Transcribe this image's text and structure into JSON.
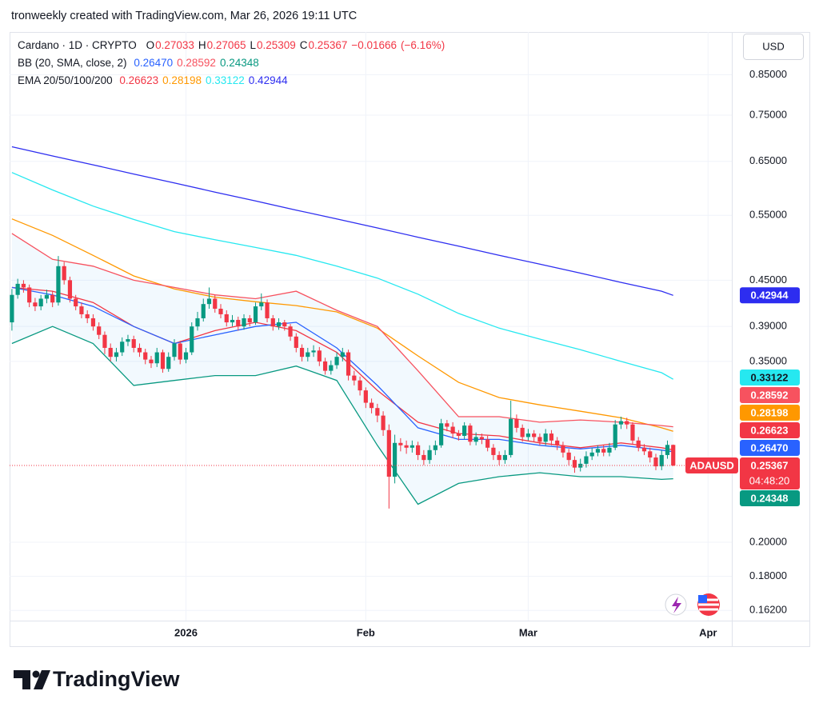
{
  "chart_data": {
    "type": "candlestick",
    "attribution": "tronweekly created with TradingView.com, Mar 26, 2026 19:11 UTC",
    "symbol": "Cardano · 1D · CRYPTO",
    "symbol_tag": "ADAUSD",
    "currency": "USD",
    "countdown": "04:48:20",
    "logo_text": "TradingView",
    "ohlc_labels": [
      "O",
      "H",
      "L",
      "C"
    ],
    "change": {
      "value": -0.01666,
      "label": "−0.01666"
    },
    "change_pct": {
      "value": -6.16,
      "label": "(−6.16%)"
    },
    "log_scale": true,
    "grid": true,
    "ylim": [
      0.145,
      0.97
    ],
    "yticks": [
      {
        "value": 0.85,
        "label": "0.85000"
      },
      {
        "value": 0.75,
        "label": "0.75000"
      },
      {
        "value": 0.65,
        "label": "0.65000"
      },
      {
        "value": 0.55,
        "label": "0.55000"
      },
      {
        "value": 0.45,
        "label": "0.45000"
      },
      {
        "value": 0.39,
        "label": "0.39000"
      },
      {
        "value": 0.35,
        "label": "0.35000"
      },
      {
        "value": 0.2,
        "label": "0.20000"
      },
      {
        "value": 0.18,
        "label": "0.18000"
      },
      {
        "value": 0.162,
        "label": "0.16200"
      }
    ],
    "xlim": [
      -0.4,
      124.1
    ],
    "xticks": [
      {
        "value": 30,
        "label": "2026"
      },
      {
        "value": 61,
        "label": "Feb"
      },
      {
        "value": 89,
        "label": "Mar"
      },
      {
        "value": 120,
        "label": "Apr"
      }
    ],
    "candles": {
      "up_color": "#089981",
      "down_color": "#f23645",
      "open": [
        0.395,
        0.43,
        0.445,
        0.44,
        0.42,
        0.415,
        0.425,
        0.43,
        0.42,
        0.47,
        0.45,
        0.425,
        0.415,
        0.405,
        0.4,
        0.39,
        0.38,
        0.365,
        0.355,
        0.36,
        0.372,
        0.375,
        0.365,
        0.36,
        0.352,
        0.348,
        0.36,
        0.342,
        0.355,
        0.37,
        0.352,
        0.36,
        0.39,
        0.4,
        0.418,
        0.425,
        0.412,
        0.405,
        0.395,
        0.398,
        0.39,
        0.4,
        0.395,
        0.415,
        0.42,
        0.4,
        0.39,
        0.395,
        0.39,
        0.378,
        0.365,
        0.355,
        0.36,
        0.362,
        0.35,
        0.34,
        0.346,
        0.355,
        0.36,
        0.335,
        0.33,
        0.32,
        0.308,
        0.303,
        0.296,
        0.283,
        0.245,
        0.272,
        0.27,
        0.268,
        0.27,
        0.262,
        0.258,
        0.266,
        0.27,
        0.289,
        0.286,
        0.28,
        0.278,
        0.287,
        0.273,
        0.277,
        0.275,
        0.268,
        0.262,
        0.258,
        0.262,
        0.293,
        0.285,
        0.277,
        0.28,
        0.277,
        0.273,
        0.28,
        0.274,
        0.27,
        0.264,
        0.258,
        0.252,
        0.255,
        0.261,
        0.264,
        0.267,
        0.264,
        0.268,
        0.288,
        0.291,
        0.288,
        0.274,
        0.268,
        0.265,
        0.26,
        0.253,
        0.262,
        0.27033
      ],
      "high": [
        0.438,
        0.452,
        0.45,
        0.444,
        0.426,
        0.43,
        0.437,
        0.435,
        0.485,
        0.476,
        0.455,
        0.43,
        0.42,
        0.41,
        0.405,
        0.395,
        0.384,
        0.37,
        0.365,
        0.377,
        0.38,
        0.379,
        0.37,
        0.364,
        0.356,
        0.365,
        0.363,
        0.36,
        0.375,
        0.373,
        0.365,
        0.395,
        0.408,
        0.425,
        0.44,
        0.43,
        0.418,
        0.41,
        0.404,
        0.402,
        0.405,
        0.404,
        0.42,
        0.432,
        0.424,
        0.404,
        0.4,
        0.398,
        0.393,
        0.382,
        0.369,
        0.365,
        0.368,
        0.366,
        0.354,
        0.351,
        0.36,
        0.365,
        0.363,
        0.34,
        0.334,
        0.323,
        0.312,
        0.307,
        0.3,
        0.288,
        0.279,
        0.276,
        0.274,
        0.274,
        0.273,
        0.266,
        0.27,
        0.274,
        0.293,
        0.292,
        0.29,
        0.283,
        0.29,
        0.289,
        0.281,
        0.28,
        0.278,
        0.271,
        0.265,
        0.266,
        0.31,
        0.297,
        0.288,
        0.284,
        0.283,
        0.28,
        0.284,
        0.283,
        0.277,
        0.273,
        0.267,
        0.261,
        0.259,
        0.265,
        0.268,
        0.27,
        0.27,
        0.272,
        0.292,
        0.295,
        0.294,
        0.29,
        0.277,
        0.271,
        0.268,
        0.263,
        0.266,
        0.274,
        0.27065
      ],
      "low": [
        0.385,
        0.425,
        0.433,
        0.414,
        0.409,
        0.41,
        0.419,
        0.414,
        0.416,
        0.444,
        0.42,
        0.41,
        0.4,
        0.394,
        0.385,
        0.375,
        0.358,
        0.35,
        0.35,
        0.356,
        0.367,
        0.36,
        0.355,
        0.347,
        0.343,
        0.344,
        0.338,
        0.339,
        0.351,
        0.347,
        0.348,
        0.357,
        0.385,
        0.396,
        0.412,
        0.407,
        0.4,
        0.39,
        0.39,
        0.385,
        0.386,
        0.39,
        0.392,
        0.41,
        0.395,
        0.385,
        0.386,
        0.385,
        0.373,
        0.36,
        0.35,
        0.35,
        0.355,
        0.345,
        0.336,
        0.336,
        0.342,
        0.35,
        0.33,
        0.325,
        0.315,
        0.303,
        0.298,
        0.29,
        0.278,
        0.222,
        0.24,
        0.265,
        0.263,
        0.264,
        0.258,
        0.254,
        0.255,
        0.262,
        0.268,
        0.282,
        0.276,
        0.274,
        0.275,
        0.27,
        0.27,
        0.271,
        0.265,
        0.258,
        0.254,
        0.255,
        0.26,
        0.281,
        0.273,
        0.274,
        0.273,
        0.27,
        0.27,
        0.27,
        0.266,
        0.26,
        0.254,
        0.248,
        0.249,
        0.252,
        0.258,
        0.261,
        0.261,
        0.261,
        0.266,
        0.284,
        0.284,
        0.271,
        0.265,
        0.262,
        0.256,
        0.25,
        0.25,
        0.259,
        0.25309
      ],
      "close": [
        0.43,
        0.445,
        0.44,
        0.42,
        0.415,
        0.425,
        0.43,
        0.42,
        0.47,
        0.45,
        0.425,
        0.415,
        0.405,
        0.4,
        0.39,
        0.38,
        0.365,
        0.355,
        0.36,
        0.372,
        0.375,
        0.365,
        0.36,
        0.352,
        0.348,
        0.36,
        0.342,
        0.355,
        0.37,
        0.352,
        0.36,
        0.39,
        0.4,
        0.418,
        0.425,
        0.412,
        0.405,
        0.395,
        0.398,
        0.39,
        0.4,
        0.395,
        0.415,
        0.42,
        0.4,
        0.39,
        0.395,
        0.39,
        0.378,
        0.365,
        0.355,
        0.36,
        0.362,
        0.35,
        0.34,
        0.346,
        0.355,
        0.36,
        0.335,
        0.33,
        0.32,
        0.308,
        0.303,
        0.296,
        0.283,
        0.245,
        0.272,
        0.27,
        0.268,
        0.27,
        0.262,
        0.258,
        0.266,
        0.27,
        0.289,
        0.286,
        0.28,
        0.278,
        0.287,
        0.273,
        0.277,
        0.275,
        0.268,
        0.262,
        0.258,
        0.262,
        0.293,
        0.285,
        0.277,
        0.28,
        0.277,
        0.273,
        0.28,
        0.274,
        0.27,
        0.264,
        0.258,
        0.252,
        0.255,
        0.261,
        0.264,
        0.267,
        0.264,
        0.268,
        0.288,
        0.291,
        0.288,
        0.274,
        0.268,
        0.265,
        0.26,
        0.253,
        0.262,
        0.27033,
        0.25367
      ]
    },
    "bb": {
      "label": "BB (20, SMA, close, 2)",
      "fill_color": "#2196f3",
      "x": [
        0,
        7,
        14,
        21,
        28,
        35,
        42,
        49,
        56,
        63,
        70,
        77,
        84,
        91,
        98,
        105,
        112,
        114
      ],
      "series": [
        {
          "color": "#2962ff",
          "last_label": "0.26470",
          "values": [
            0.44,
            0.43,
            0.415,
            0.39,
            0.37,
            0.38,
            0.39,
            0.395,
            0.365,
            0.325,
            0.285,
            0.275,
            0.275,
            0.27,
            0.267,
            0.27,
            0.266,
            0.2647
          ]
        },
        {
          "color": "#f7525f",
          "values": [
            0.52,
            0.48,
            0.47,
            0.45,
            0.44,
            0.43,
            0.425,
            0.435,
            0.41,
            0.39,
            0.34,
            0.295,
            0.295,
            0.29,
            0.292,
            0.29,
            0.287,
            0.28592
          ]
        },
        {
          "color": "#089981",
          "values": [
            0.37,
            0.39,
            0.37,
            0.325,
            0.33,
            0.335,
            0.335,
            0.345,
            0.33,
            0.27,
            0.225,
            0.24,
            0.245,
            0.248,
            0.245,
            0.245,
            0.243,
            0.24348
          ]
        }
      ]
    },
    "ema": {
      "label": "EMA 20/50/100/200",
      "x": [
        0,
        7,
        14,
        21,
        28,
        35,
        42,
        49,
        56,
        63,
        70,
        77,
        84,
        91,
        98,
        105,
        112,
        114
      ],
      "series": [
        {
          "color": "#f23645",
          "values": [
            0.44,
            0.435,
            0.42,
            0.39,
            0.37,
            0.385,
            0.395,
            0.385,
            0.36,
            0.32,
            0.29,
            0.28,
            0.278,
            0.272,
            0.268,
            0.272,
            0.268,
            0.26623
          ]
        },
        {
          "color": "#ff9800",
          "values": [
            0.544,
            0.517,
            0.486,
            0.456,
            0.438,
            0.427,
            0.421,
            0.416,
            0.408,
            0.388,
            0.356,
            0.328,
            0.313,
            0.306,
            0.3,
            0.294,
            0.285,
            0.28198
          ]
        },
        {
          "color": "#26e8f0",
          "values": [
            0.628,
            0.595,
            0.566,
            0.543,
            0.523,
            0.51,
            0.498,
            0.486,
            0.47,
            0.453,
            0.431,
            0.406,
            0.388,
            0.375,
            0.363,
            0.35,
            0.338,
            0.33122
          ]
        },
        {
          "color": "#2d2df0",
          "values": [
            0.68,
            0.661,
            0.643,
            0.625,
            0.608,
            0.591,
            0.575,
            0.559,
            0.544,
            0.529,
            0.514,
            0.5,
            0.486,
            0.473,
            0.46,
            0.447,
            0.435,
            0.42944
          ]
        }
      ]
    }
  }
}
